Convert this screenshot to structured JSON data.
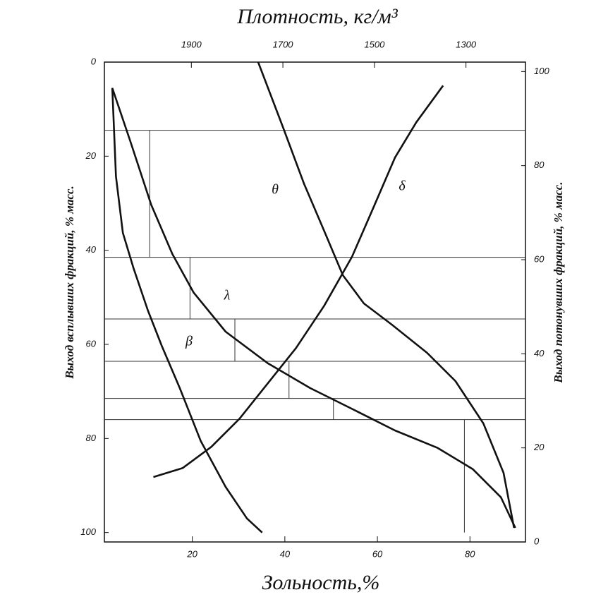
{
  "chart_data": {
    "type": "line",
    "top_axis_title": "Плотность, кг/м³",
    "x_label": "Зольность,%",
    "y_label": "Выход всплывших фракций, % масс.",
    "y2_label": "Выход потонувших фракций, % масс.",
    "xlim": [
      1,
      92
    ],
    "xticks": [
      20,
      40,
      60,
      80
    ],
    "x2lim": [
      2090,
      1170
    ],
    "x2ticks": [
      1900,
      1700,
      1500,
      1300
    ],
    "ylim": [
      0,
      102
    ],
    "yticks": [
      0,
      20,
      40,
      60,
      80,
      100
    ],
    "y2lim": [
      102,
      0
    ],
    "y2ticks": [
      0,
      20,
      40,
      60,
      80,
      100
    ],
    "color": "#111111",
    "layer_bounds": [
      14.5,
      41.5,
      54.6,
      63.6,
      71.5,
      76.0,
      100
    ],
    "layer_ash": [
      10.8,
      19.5,
      29.2,
      40.9,
      50.5,
      78.8
    ],
    "series": [
      {
        "name": "λ",
        "color": "#111111",
        "x": [
          2.7,
          6.6,
          11.1,
          15.7,
          20.3,
          27.2,
          36.3,
          45.5,
          54.7,
          63.8,
          73.0,
          80.6,
          86.7,
          89.8
        ],
        "values": [
          5.5,
          16.8,
          30.3,
          40.8,
          49.0,
          57.3,
          64.0,
          69.3,
          73.8,
          78.3,
          82.0,
          86.5,
          92.5,
          99.0
        ]
      },
      {
        "name": "β",
        "color": "#111111",
        "x": [
          2.7,
          3.5,
          5.0,
          7.3,
          10.4,
          13.4,
          17.3,
          21.8,
          27.2,
          31.8,
          35.1
        ],
        "values": [
          5.5,
          24.3,
          36.3,
          43.8,
          52.8,
          60.3,
          69.3,
          80.5,
          90.3,
          97.0,
          100
        ]
      },
      {
        "name": "θ",
        "color": "#111111",
        "x_axis": "x2",
        "x": [
          1754,
          1700,
          1654,
          1608,
          1569,
          1523,
          1462,
          1385,
          1323,
          1262,
          1218,
          1195
        ],
        "values": [
          0,
          13.8,
          25.8,
          36.3,
          45.3,
          51.3,
          55.8,
          61.8,
          67.8,
          76.8,
          87.3,
          99.0
        ]
      },
      {
        "name": "δ",
        "color": "#111111",
        "axis": "y2",
        "x": [
          11.6,
          17.9,
          24.1,
          30.2,
          36.3,
          42.4,
          48.5,
          54.5,
          59.2,
          63.8,
          68.4,
          74.2
        ],
        "values": [
          13.8,
          15.7,
          20.2,
          26.2,
          33.7,
          41.2,
          50.2,
          60.6,
          71.2,
          81.7,
          89.2,
          97.0
        ]
      }
    ]
  }
}
